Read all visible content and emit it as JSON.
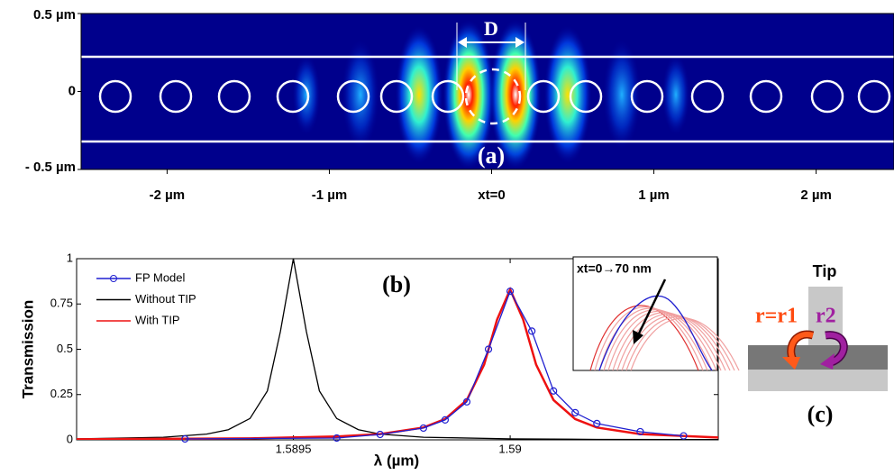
{
  "chart_data": [
    {
      "type": "field-map",
      "xlim": [
        -2.53,
        2.48
      ],
      "xticks": [
        {
          "value": -2,
          "label": "-2 µm"
        },
        {
          "value": -1,
          "label": "-1 µm"
        },
        {
          "value": 0,
          "label": "xt=0"
        },
        {
          "value": 1,
          "label": "1 µm"
        },
        {
          "value": 2,
          "label": "2 µm"
        }
      ],
      "ylim": [
        -0.5,
        0.5
      ],
      "yticks": [
        {
          "value": -0.5,
          "label": "- 0.5 µm"
        },
        0,
        {
          "value": 0.5,
          "label": "0.5 µm"
        }
      ],
      "annotations": [
        "D",
        "(a)"
      ]
    },
    {
      "type": "line",
      "xlabel": "λ (µm)",
      "ylabel": "Transmission",
      "xlim": [
        1.589,
        1.59048
      ],
      "ylim": [
        0,
        1
      ],
      "xticks": [
        1.5895,
        1.59
      ],
      "yticks": [
        0,
        0.25,
        0.5,
        0.75,
        1
      ],
      "legend": "top-left",
      "annotations": [
        "(b)",
        "xt=0→70 nm"
      ],
      "series": [
        {
          "name": "FP Model",
          "color": "#1f1fd0",
          "marker": "circle",
          "x": [
            1.58925,
            1.5896,
            1.5897,
            1.5898,
            1.58985,
            1.5899,
            1.58995,
            1.59,
            1.59005,
            1.5901,
            1.59015,
            1.5902,
            1.5903,
            1.5904
          ],
          "values": [
            0.005,
            0.01,
            0.03,
            0.065,
            0.11,
            0.21,
            0.5,
            0.82,
            0.6,
            0.27,
            0.15,
            0.09,
            0.045,
            0.022
          ]
        },
        {
          "name": "Without TIP",
          "color": "#000000",
          "x": [
            1.589,
            1.5892,
            1.5893,
            1.58935,
            1.5894,
            1.58944,
            1.58947,
            1.5895,
            1.58953,
            1.58956,
            1.5896,
            1.58965,
            1.5897,
            1.5898,
            1.59,
            1.5902,
            1.59048
          ],
          "values": [
            0.0053,
            0.0146,
            0.032,
            0.056,
            0.118,
            0.27,
            0.597,
            1,
            0.597,
            0.27,
            0.118,
            0.056,
            0.032,
            0.0146,
            0.0053,
            0.0027,
            0.0014
          ]
        },
        {
          "name": "With TIP",
          "color": "#ee1111",
          "x": [
            1.589,
            1.5894,
            1.5896,
            1.5897,
            1.5898,
            1.58985,
            1.5899,
            1.58994,
            1.58997,
            1.59,
            1.59003,
            1.59006,
            1.5901,
            1.59015,
            1.5902,
            1.5903,
            1.59048
          ],
          "values": [
            0.003,
            0.0082,
            0.0183,
            0.032,
            0.068,
            0.115,
            0.22,
            0.415,
            0.664,
            0.83,
            0.664,
            0.415,
            0.22,
            0.115,
            0.068,
            0.032,
            0.0127
          ]
        }
      ]
    }
  ],
  "diagram": {
    "tip": "Tip",
    "r1": "r=r1",
    "r2": "r2",
    "label": "(c)"
  }
}
